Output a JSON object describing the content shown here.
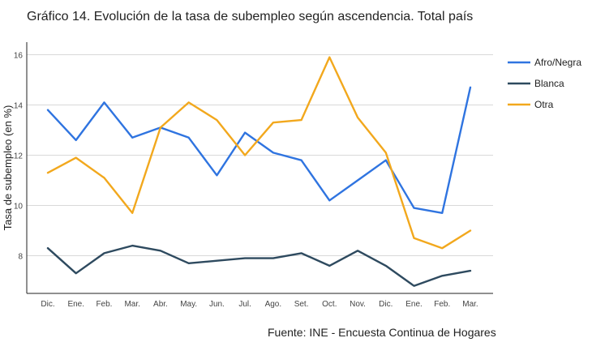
{
  "title": "Gráfico 14. Evolución de la tasa de subempleo según ascendencia. Total país",
  "source": "Fuente: INE - Encuesta Continua de Hogares",
  "chart_data": {
    "type": "line",
    "title": "Gráfico 14. Evolución de la tasa de subempleo según ascendencia. Total país",
    "xlabel": "",
    "ylabel": "Tasa de subempleo (en %)",
    "categories": [
      "Dic.",
      "Ene.",
      "Feb.",
      "Mar.",
      "Abr.",
      "May.",
      "Jun.",
      "Jul.",
      "Ago.",
      "Set.",
      "Oct.",
      "Nov.",
      "Dic.",
      "Ene.",
      "Feb.",
      "Mar."
    ],
    "ylim": [
      6.5,
      16.5
    ],
    "yticks": [
      8,
      10,
      12,
      14,
      16
    ],
    "grid": true,
    "legend_position": "right",
    "series": [
      {
        "name": "Afro/Negra",
        "color": "#2f74e0",
        "values": [
          13.8,
          12.6,
          14.1,
          12.7,
          13.1,
          12.7,
          11.2,
          12.9,
          12.1,
          11.8,
          10.2,
          11.0,
          11.8,
          9.9,
          9.7,
          14.7
        ]
      },
      {
        "name": "Blanca",
        "color": "#2e4a5f",
        "values": [
          8.3,
          7.3,
          8.1,
          8.4,
          8.2,
          7.7,
          7.8,
          7.9,
          7.9,
          8.1,
          7.6,
          8.2,
          7.6,
          6.8,
          7.2,
          7.4
        ]
      },
      {
        "name": "Otra",
        "color": "#f2a81d",
        "values": [
          11.3,
          11.9,
          11.1,
          9.7,
          13.1,
          14.1,
          13.4,
          12.0,
          13.3,
          13.4,
          15.9,
          13.5,
          12.1,
          8.7,
          8.3,
          9.0
        ]
      }
    ]
  }
}
